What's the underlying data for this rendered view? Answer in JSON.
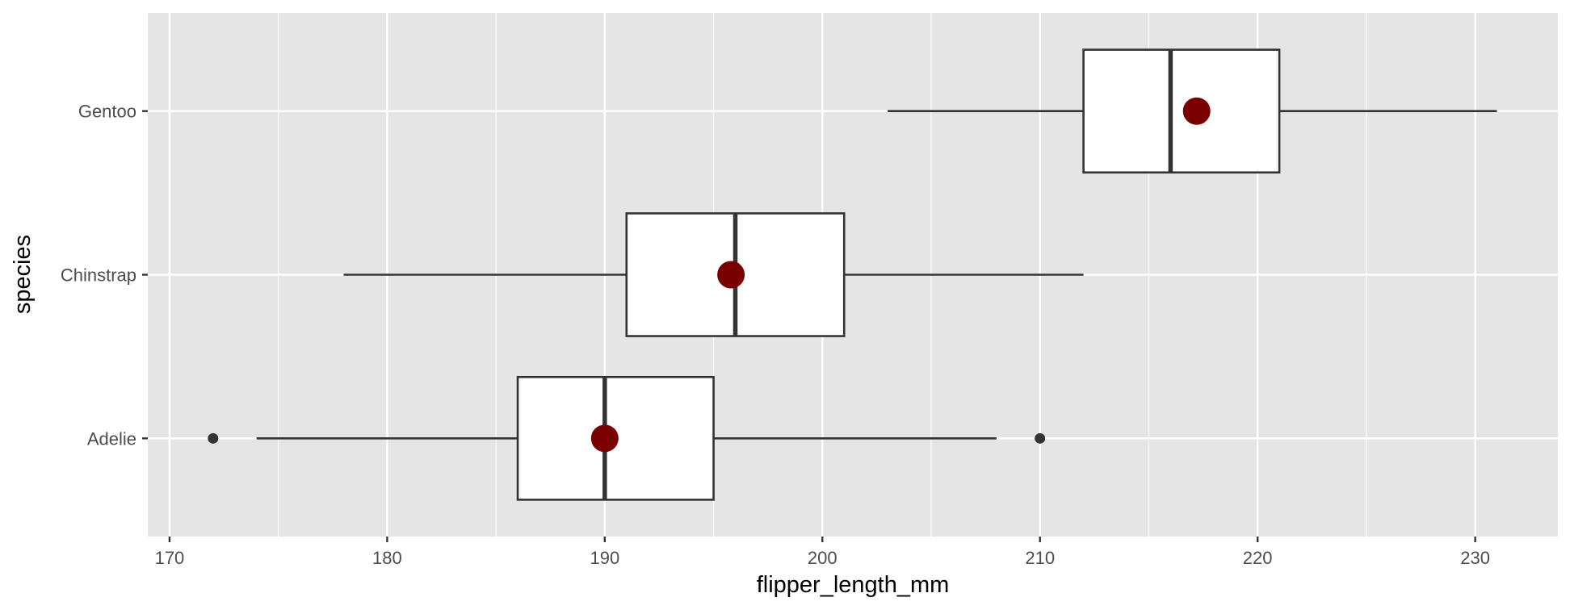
{
  "chart_data": {
    "type": "boxplot",
    "orientation": "horizontal",
    "title": "",
    "xlabel": "flipper_length_mm",
    "ylabel": "species",
    "xlim": [
      169,
      233.8
    ],
    "x_ticks": [
      170,
      180,
      190,
      200,
      210,
      220,
      230
    ],
    "x_minor_ticks": [
      175,
      185,
      195,
      205,
      215,
      225
    ],
    "categories": [
      "Adelie",
      "Chinstrap",
      "Gentoo"
    ],
    "grid": true,
    "legend": "none",
    "colors": {
      "panel": "#e5e5e5",
      "grid": "#ffffff",
      "box_fill": "#ffffff",
      "box_line": "#333333",
      "mean_point": "#7a0000",
      "outlier": "#333333"
    },
    "boxes": [
      {
        "category": "Adelie",
        "whisker_low": 174,
        "q1": 186,
        "median": 190,
        "q3": 195,
        "whisker_high": 208,
        "mean": 190.0,
        "outliers": [
          172,
          210
        ]
      },
      {
        "category": "Chinstrap",
        "whisker_low": 178,
        "q1": 191,
        "median": 196,
        "q3": 201,
        "whisker_high": 212,
        "mean": 195.8,
        "outliers": []
      },
      {
        "category": "Gentoo",
        "whisker_low": 203,
        "q1": 212,
        "median": 216,
        "q3": 221,
        "whisker_high": 231,
        "mean": 217.2,
        "outliers": []
      }
    ]
  }
}
